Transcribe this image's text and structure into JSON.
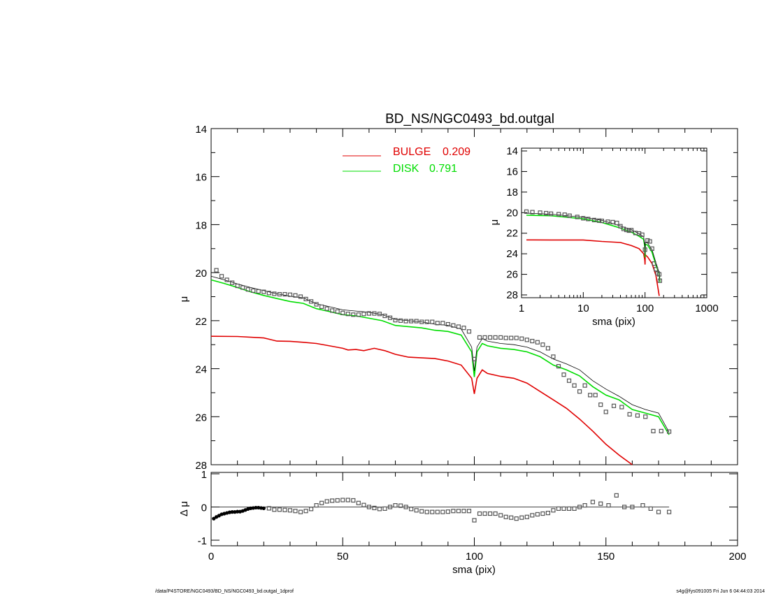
{
  "chart_data": [
    {
      "name": "main-profile",
      "type": "line",
      "title": "BD_NS/NGC0493_bd.outgal",
      "xlabel": "",
      "ylabel": "μ",
      "xlim": [
        0,
        200
      ],
      "ylim": [
        28,
        14
      ],
      "yticks": [
        14,
        16,
        18,
        20,
        22,
        24,
        26,
        28
      ],
      "legend": {
        "placement": "top-center",
        "entries": [
          {
            "name": "BULGE",
            "value": "0.209",
            "color": "#e00000"
          },
          {
            "name": "DISK",
            "value": "0.791",
            "color": "#00dd00"
          }
        ]
      },
      "series": [
        {
          "name": "BULGE",
          "color": "#e00000",
          "x": [
            0,
            10,
            20,
            25,
            30,
            35,
            40,
            45,
            50,
            52,
            55,
            58,
            62,
            66,
            70,
            75,
            80,
            85,
            90,
            95,
            99,
            100,
            101,
            103,
            105,
            110,
            115,
            120,
            125,
            130,
            135,
            140,
            145,
            150,
            155,
            160
          ],
          "y": [
            22.65,
            22.66,
            22.72,
            22.85,
            22.86,
            22.9,
            22.95,
            23.05,
            23.15,
            23.22,
            23.2,
            23.25,
            23.15,
            23.25,
            23.4,
            23.52,
            23.55,
            23.58,
            23.68,
            23.85,
            24.4,
            25.05,
            24.4,
            24.05,
            24.2,
            24.32,
            24.4,
            24.6,
            24.95,
            25.3,
            25.65,
            26.1,
            26.6,
            27.15,
            27.6,
            28.1
          ]
        },
        {
          "name": "DISK",
          "color": "#00dd00",
          "x": [
            0,
            5,
            10,
            15,
            20,
            25,
            30,
            35,
            40,
            45,
            50,
            55,
            60,
            65,
            70,
            75,
            80,
            85,
            90,
            95,
            99,
            100,
            101,
            103,
            105,
            110,
            115,
            120,
            125,
            130,
            135,
            140,
            145,
            150,
            155,
            160,
            165,
            170,
            174
          ],
          "y": [
            20.3,
            20.45,
            20.62,
            20.8,
            20.95,
            21.08,
            21.2,
            21.28,
            21.5,
            21.62,
            21.75,
            21.8,
            21.9,
            22.0,
            22.2,
            22.25,
            22.3,
            22.4,
            22.45,
            22.6,
            23.3,
            24.35,
            23.3,
            22.95,
            23.05,
            23.15,
            23.2,
            23.3,
            23.5,
            23.85,
            24.05,
            24.3,
            24.75,
            25.1,
            25.3,
            25.7,
            25.85,
            26.0,
            26.75
          ]
        },
        {
          "name": "",
          "color": "#000000",
          "x": [
            0,
            5,
            10,
            15,
            20,
            25,
            30,
            35,
            40,
            45,
            50,
            55,
            60,
            65,
            70,
            75,
            80,
            85,
            90,
            95,
            99,
            100,
            101,
            103,
            105,
            110,
            115,
            120,
            125,
            130,
            135,
            140,
            145,
            150,
            155,
            160,
            165,
            170,
            174
          ],
          "y": [
            20.15,
            20.3,
            20.47,
            20.62,
            20.75,
            20.88,
            20.98,
            21.05,
            21.3,
            21.42,
            21.55,
            21.6,
            21.65,
            21.75,
            21.95,
            22.0,
            22.05,
            22.15,
            22.2,
            22.35,
            23.1,
            24.1,
            23.1,
            22.75,
            22.85,
            22.95,
            23.0,
            23.1,
            23.3,
            23.6,
            23.8,
            24.05,
            24.5,
            24.85,
            25.15,
            25.5,
            25.7,
            25.85,
            26.65
          ]
        },
        {
          "name": "",
          "color": "#555555",
          "marker": "square",
          "x": [
            2,
            4,
            6,
            8,
            10,
            12,
            14,
            16,
            18,
            20,
            22,
            24,
            26,
            28,
            30,
            32,
            34,
            36,
            38,
            40,
            42,
            44,
            46,
            48,
            50,
            52,
            54,
            56,
            58,
            60,
            62,
            64,
            66,
            68,
            70,
            72,
            74,
            76,
            78,
            80,
            82,
            84,
            86,
            88,
            90,
            92,
            94,
            96,
            98,
            100,
            102,
            104,
            106,
            108,
            110,
            112,
            114,
            116,
            118,
            120,
            122,
            124,
            126,
            128,
            130,
            132,
            134,
            136,
            138,
            140,
            142,
            144,
            146,
            148,
            150,
            153,
            156,
            159,
            162,
            165,
            168,
            171,
            174
          ],
          "y": [
            19.9,
            20.15,
            20.3,
            20.42,
            20.55,
            20.62,
            20.7,
            20.75,
            20.78,
            20.8,
            20.85,
            20.88,
            20.9,
            20.9,
            20.92,
            20.95,
            21.0,
            21.1,
            21.2,
            21.32,
            21.42,
            21.5,
            21.58,
            21.62,
            21.68,
            21.72,
            21.75,
            21.75,
            21.72,
            21.7,
            21.7,
            21.72,
            21.8,
            21.88,
            21.98,
            22.0,
            22.02,
            22.02,
            22.02,
            22.05,
            22.05,
            22.05,
            22.1,
            22.1,
            22.15,
            22.2,
            22.25,
            22.3,
            22.45,
            23.6,
            22.7,
            22.7,
            22.7,
            22.7,
            22.7,
            22.72,
            22.72,
            22.72,
            22.75,
            22.8,
            22.85,
            22.9,
            23.0,
            23.15,
            23.5,
            23.9,
            24.25,
            24.5,
            24.7,
            24.95,
            24.7,
            25.1,
            25.1,
            25.5,
            25.8,
            25.55,
            25.6,
            25.9,
            25.95,
            26.0,
            26.6,
            26.6,
            26.62
          ]
        }
      ]
    },
    {
      "name": "residuals",
      "type": "scatter",
      "xlabel": "sma (pix)",
      "ylabel": "Δ μ",
      "xlim": [
        0,
        200
      ],
      "ylim": [
        -1,
        1
      ],
      "xticks": [
        0,
        50,
        100,
        150,
        200
      ],
      "yticks": [
        -1,
        0,
        1
      ],
      "zero_line": true,
      "series": [
        {
          "name": "",
          "color": "#000000",
          "marker": "circle",
          "x": [
            1,
            2,
            3,
            4,
            5,
            6,
            7,
            8,
            9,
            10,
            11,
            12,
            13,
            14,
            15,
            16,
            17,
            18,
            19,
            20
          ],
          "y": [
            -0.35,
            -0.3,
            -0.26,
            -0.22,
            -0.2,
            -0.18,
            -0.16,
            -0.15,
            -0.15,
            -0.14,
            -0.14,
            -0.12,
            -0.09,
            -0.06,
            -0.04,
            -0.03,
            -0.02,
            -0.02,
            -0.03,
            -0.04
          ]
        },
        {
          "name": "",
          "color": "#555555",
          "marker": "square",
          "x": [
            22,
            24,
            26,
            28,
            30,
            32,
            34,
            36,
            38,
            40,
            42,
            44,
            46,
            48,
            50,
            52,
            54,
            56,
            58,
            60,
            62,
            64,
            66,
            68,
            70,
            72,
            74,
            76,
            78,
            80,
            82,
            84,
            86,
            88,
            90,
            92,
            94,
            96,
            98,
            100,
            102,
            104,
            106,
            108,
            110,
            112,
            114,
            116,
            118,
            120,
            122,
            124,
            126,
            128,
            130,
            132,
            134,
            136,
            138,
            140,
            142,
            145,
            148,
            151,
            154,
            157,
            160,
            164,
            167,
            170,
            174
          ],
          "y": [
            -0.04,
            -0.08,
            -0.08,
            -0.09,
            -0.1,
            -0.12,
            -0.15,
            -0.12,
            -0.06,
            0.05,
            0.12,
            0.17,
            0.19,
            0.2,
            0.21,
            0.21,
            0.2,
            0.12,
            0.06,
            0.0,
            -0.03,
            -0.06,
            -0.05,
            0.0,
            0.05,
            0.04,
            0.0,
            -0.06,
            -0.1,
            -0.13,
            -0.15,
            -0.15,
            -0.15,
            -0.15,
            -0.14,
            -0.12,
            -0.12,
            -0.12,
            -0.12,
            -0.4,
            -0.2,
            -0.2,
            -0.2,
            -0.2,
            -0.25,
            -0.3,
            -0.32,
            -0.35,
            -0.32,
            -0.3,
            -0.25,
            -0.22,
            -0.2,
            -0.18,
            -0.1,
            -0.05,
            -0.05,
            -0.05,
            -0.05,
            0.0,
            0.05,
            0.15,
            0.1,
            0.05,
            0.35,
            0.0,
            0.0,
            0.05,
            -0.05,
            -0.15,
            -0.15
          ]
        }
      ]
    },
    {
      "name": "inset-log",
      "type": "line",
      "xlabel": "sma (pix)",
      "ylabel": "μ",
      "xscale": "log",
      "xlim": [
        1,
        1000
      ],
      "ylim": [
        28,
        14
      ],
      "xticks": [
        1,
        10,
        100,
        1000
      ],
      "yticks": [
        14,
        16,
        18,
        20,
        22,
        24,
        26,
        28
      ],
      "series": [
        {
          "name": "BULGE",
          "color": "#e00000",
          "x": [
            1.2,
            3,
            10,
            20,
            40,
            60,
            80,
            95,
            99,
            100,
            101,
            110,
            130,
            150,
            170
          ],
          "y": [
            22.65,
            22.66,
            22.66,
            22.8,
            22.9,
            23.2,
            23.5,
            24.0,
            24.6,
            25.05,
            24.1,
            24.3,
            24.95,
            26.1,
            28.1
          ]
        },
        {
          "name": "DISK",
          "color": "#00dd00",
          "x": [
            1.2,
            3,
            10,
            20,
            40,
            60,
            80,
            95,
            99,
            100,
            101,
            110,
            130,
            150,
            170,
            174
          ],
          "y": [
            20.25,
            20.3,
            20.6,
            20.95,
            21.5,
            21.9,
            22.3,
            22.6,
            23.3,
            24.35,
            23.1,
            23.15,
            23.85,
            25.1,
            26.0,
            26.75
          ]
        },
        {
          "name": "",
          "color": "#000000",
          "x": [
            1.2,
            3,
            10,
            20,
            40,
            60,
            80,
            95,
            99,
            100,
            101,
            110,
            130,
            150,
            170,
            174
          ],
          "y": [
            20.05,
            20.15,
            20.45,
            20.75,
            21.3,
            21.65,
            22.05,
            22.35,
            23.1,
            24.1,
            22.9,
            22.95,
            23.6,
            24.85,
            25.85,
            26.65
          ]
        },
        {
          "name": "",
          "color": "#555555",
          "marker": "square",
          "x": [
            1.2,
            1.5,
            2,
            2.5,
            3,
            4,
            5,
            6,
            8,
            10,
            12,
            15,
            18,
            20,
            25,
            30,
            35,
            40,
            45,
            50,
            55,
            60,
            70,
            80,
            90,
            100,
            110,
            120,
            130,
            140,
            150,
            160,
            170,
            174
          ],
          "y": [
            19.9,
            19.95,
            20.0,
            20.05,
            20.1,
            20.15,
            20.2,
            20.3,
            20.42,
            20.55,
            20.62,
            20.72,
            20.78,
            20.8,
            20.88,
            20.92,
            21.0,
            21.32,
            21.58,
            21.68,
            21.75,
            21.7,
            21.98,
            22.02,
            22.15,
            23.6,
            22.7,
            22.8,
            23.5,
            24.95,
            25.5,
            25.9,
            26.0,
            26.62
          ]
        }
      ]
    }
  ],
  "footer": {
    "left": "/data/P4STORE/NGC0493/BD_NS/NGC0493_bd.outgal_1dprof",
    "right": "s4g@fys091005  Fri Jun  6 04:44:03 2014"
  }
}
